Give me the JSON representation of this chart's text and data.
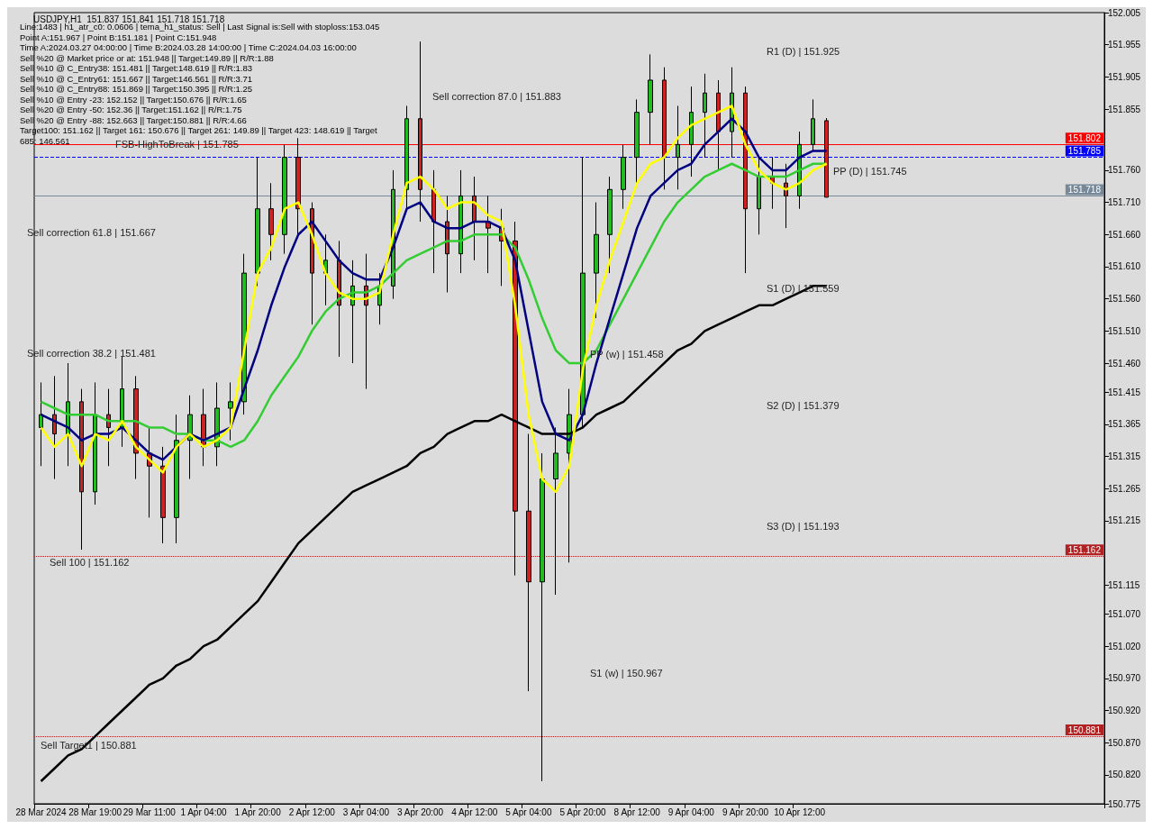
{
  "chart_data": {
    "type": "candlestick",
    "title": "USDJPY,H1  151.837 151.841 151.718 151.718",
    "categories": [
      "28 Mar 2024",
      null,
      null,
      null,
      "28 Mar 19:00",
      null,
      null,
      null,
      "29 Mar 11:00",
      null,
      null,
      null,
      "1 Apr 04:00",
      null,
      null,
      null,
      "1 Apr 20:00",
      null,
      null,
      null,
      "2 Apr 12:00",
      null,
      null,
      null,
      "3 Apr 04:00",
      null,
      null,
      null,
      "3 Apr 20:00",
      null,
      null,
      null,
      "4 Apr 12:00",
      null,
      null,
      null,
      "5 Apr 04:00",
      null,
      null,
      null,
      "5 Apr 20:00",
      null,
      null,
      null,
      "8 Apr 12:00",
      null,
      null,
      null,
      "9 Apr 04:00",
      null,
      null,
      null,
      "9 Apr 20:00",
      null,
      null,
      null,
      "10 Apr 12:00",
      null,
      null,
      null,
      null,
      null,
      null,
      null,
      null,
      null,
      null,
      null,
      null,
      null,
      null,
      null,
      null,
      null,
      null,
      null,
      null,
      null,
      null
    ],
    "ohlc": [
      [
        151.36,
        151.43,
        151.3,
        151.38
      ],
      [
        151.38,
        151.44,
        151.28,
        151.35
      ],
      [
        151.35,
        151.46,
        151.3,
        151.4
      ],
      [
        151.4,
        151.42,
        151.17,
        151.26
      ],
      [
        151.26,
        151.43,
        151.24,
        151.38
      ],
      [
        151.38,
        151.42,
        151.3,
        151.36
      ],
      [
        151.36,
        151.47,
        151.33,
        151.42
      ],
      [
        151.42,
        151.44,
        151.28,
        151.32
      ],
      [
        151.32,
        151.36,
        151.22,
        151.3
      ],
      [
        151.3,
        151.33,
        151.18,
        151.22
      ],
      [
        151.22,
        151.38,
        151.18,
        151.34
      ],
      [
        151.34,
        151.41,
        151.28,
        151.38
      ],
      [
        151.38,
        151.42,
        151.3,
        151.33
      ],
      [
        151.33,
        151.43,
        151.3,
        151.39
      ],
      [
        151.39,
        151.43,
        151.34,
        151.4
      ],
      [
        151.4,
        151.63,
        151.38,
        151.6
      ],
      [
        151.6,
        151.78,
        151.58,
        151.7
      ],
      [
        151.7,
        151.74,
        151.62,
        151.66
      ],
      [
        151.66,
        151.8,
        151.63,
        151.78
      ],
      [
        151.78,
        151.81,
        151.66,
        151.7
      ],
      [
        151.7,
        151.71,
        151.52,
        151.6
      ],
      [
        151.6,
        151.66,
        151.55,
        151.62
      ],
      [
        151.62,
        151.65,
        151.47,
        151.55
      ],
      [
        151.55,
        151.62,
        151.46,
        151.58
      ],
      [
        151.58,
        151.63,
        151.42,
        151.55
      ],
      [
        151.55,
        151.6,
        151.52,
        151.58
      ],
      [
        151.58,
        151.76,
        151.56,
        151.73
      ],
      [
        151.73,
        151.86,
        151.7,
        151.84
      ],
      [
        151.84,
        151.96,
        151.68,
        151.73
      ],
      [
        151.73,
        151.76,
        151.6,
        151.68
      ],
      [
        151.68,
        151.72,
        151.57,
        151.63
      ],
      [
        151.63,
        151.76,
        151.6,
        151.72
      ],
      [
        151.72,
        151.75,
        151.62,
        151.68
      ],
      [
        151.68,
        151.72,
        151.6,
        151.67
      ],
      [
        151.67,
        151.7,
        151.58,
        151.65
      ],
      [
        151.65,
        151.68,
        151.13,
        151.23
      ],
      [
        151.23,
        151.35,
        150.95,
        151.12
      ],
      [
        151.12,
        151.32,
        150.81,
        151.28
      ],
      [
        151.28,
        151.36,
        151.1,
        151.32
      ],
      [
        151.32,
        151.42,
        151.15,
        151.38
      ],
      [
        151.38,
        151.78,
        151.36,
        151.6
      ],
      [
        151.6,
        151.71,
        151.53,
        151.66
      ],
      [
        151.66,
        151.75,
        151.6,
        151.73
      ],
      [
        151.73,
        151.8,
        151.7,
        151.78
      ],
      [
        151.78,
        151.87,
        151.74,
        151.85
      ],
      [
        151.85,
        151.94,
        151.8,
        151.9
      ],
      [
        151.9,
        151.92,
        151.73,
        151.78
      ],
      [
        151.78,
        151.86,
        151.73,
        151.8
      ],
      [
        151.8,
        151.89,
        151.75,
        151.85
      ],
      [
        151.85,
        151.91,
        151.78,
        151.88
      ],
      [
        151.88,
        151.9,
        151.76,
        151.82
      ],
      [
        151.82,
        151.92,
        151.78,
        151.88
      ],
      [
        151.88,
        151.89,
        151.6,
        151.7
      ],
      [
        151.7,
        151.78,
        151.66,
        151.75
      ],
      [
        151.75,
        151.78,
        151.7,
        151.74
      ],
      [
        151.74,
        151.77,
        151.67,
        151.72
      ],
      [
        151.72,
        151.82,
        151.7,
        151.8
      ],
      [
        151.8,
        151.87,
        151.79,
        151.84
      ],
      [
        151.837,
        151.841,
        151.718,
        151.718
      ],
      null,
      null,
      null,
      null,
      null,
      null,
      null,
      null,
      null,
      null,
      null,
      null,
      null,
      null,
      null,
      null,
      null,
      null,
      null,
      null
    ],
    "series": [
      {
        "type": "line",
        "color": "#000000",
        "values": [
          150.81,
          150.83,
          150.85,
          150.86,
          150.88,
          150.9,
          150.92,
          150.94,
          150.96,
          150.97,
          150.99,
          151.0,
          151.02,
          151.03,
          151.05,
          151.07,
          151.09,
          151.12,
          151.15,
          151.18,
          151.2,
          151.22,
          151.24,
          151.26,
          151.27,
          151.28,
          151.29,
          151.3,
          151.32,
          151.33,
          151.35,
          151.36,
          151.37,
          151.37,
          151.38,
          151.37,
          151.36,
          151.35,
          151.35,
          151.35,
          151.36,
          151.38,
          151.39,
          151.4,
          151.42,
          151.44,
          151.46,
          151.48,
          151.49,
          151.51,
          151.52,
          151.53,
          151.54,
          151.55,
          151.55,
          151.56,
          151.57,
          151.58,
          151.58,
          null,
          null,
          null,
          null,
          null,
          null,
          null,
          null,
          null,
          null,
          null,
          null,
          null,
          null,
          null,
          null,
          null,
          null,
          null,
          null
        ]
      },
      {
        "type": "line",
        "color": "#33cc33",
        "values": [
          151.4,
          151.39,
          151.38,
          151.38,
          151.38,
          151.37,
          151.37,
          151.37,
          151.36,
          151.36,
          151.35,
          151.35,
          151.34,
          151.34,
          151.33,
          151.34,
          151.37,
          151.41,
          151.44,
          151.47,
          151.51,
          151.54,
          151.56,
          151.57,
          151.57,
          151.58,
          151.6,
          151.62,
          151.63,
          151.64,
          151.65,
          151.65,
          151.66,
          151.66,
          151.66,
          151.64,
          151.59,
          151.53,
          151.48,
          151.46,
          151.46,
          151.48,
          151.52,
          151.56,
          151.6,
          151.64,
          151.68,
          151.71,
          151.73,
          151.75,
          151.76,
          151.77,
          151.76,
          151.75,
          151.75,
          151.75,
          151.76,
          151.77,
          151.77,
          null,
          null,
          null,
          null,
          null,
          null,
          null,
          null,
          null,
          null,
          null,
          null,
          null,
          null,
          null,
          null,
          null,
          null,
          null,
          null
        ]
      },
      {
        "type": "line",
        "color": "#000080",
        "values": [
          151.38,
          151.37,
          151.36,
          151.34,
          151.35,
          151.35,
          151.36,
          151.34,
          151.32,
          151.31,
          151.33,
          151.35,
          151.34,
          151.35,
          151.36,
          151.42,
          151.48,
          151.55,
          151.61,
          151.66,
          151.68,
          151.65,
          151.62,
          151.6,
          151.59,
          151.59,
          151.64,
          151.7,
          151.71,
          151.68,
          151.67,
          151.67,
          151.68,
          151.68,
          151.67,
          151.62,
          151.51,
          151.4,
          151.35,
          151.34,
          151.38,
          151.46,
          151.53,
          151.6,
          151.67,
          151.72,
          151.74,
          151.76,
          151.77,
          151.8,
          151.82,
          151.84,
          151.82,
          151.78,
          151.76,
          151.76,
          151.78,
          151.79,
          151.79,
          null,
          null,
          null,
          null,
          null,
          null,
          null,
          null,
          null,
          null,
          null,
          null,
          null,
          null,
          null,
          null,
          null,
          null,
          null,
          null
        ]
      },
      {
        "type": "line",
        "color": "#ffff00",
        "values": [
          151.36,
          151.33,
          151.35,
          151.3,
          151.35,
          151.34,
          151.37,
          151.33,
          151.31,
          151.29,
          151.33,
          151.35,
          151.33,
          151.34,
          151.36,
          151.48,
          151.6,
          151.64,
          151.7,
          151.71,
          151.66,
          151.6,
          151.57,
          151.56,
          151.56,
          151.57,
          151.66,
          151.74,
          151.75,
          151.73,
          151.7,
          151.71,
          151.71,
          151.69,
          151.68,
          151.55,
          151.38,
          151.28,
          151.26,
          151.3,
          151.45,
          151.55,
          151.62,
          151.68,
          151.74,
          151.77,
          151.78,
          151.81,
          151.83,
          151.84,
          151.85,
          151.86,
          151.8,
          151.76,
          151.74,
          151.73,
          151.74,
          151.76,
          151.77,
          null,
          null,
          null,
          null,
          null,
          null,
          null,
          null,
          null,
          null,
          null,
          null,
          null,
          null,
          null,
          null,
          null,
          null,
          null,
          null
        ]
      }
    ],
    "ylim": [
      150.775,
      152.005
    ],
    "yticks": [
      152.005,
      151.955,
      151.905,
      151.855,
      {
        "value": 151.76,
        "label": "151.760"
      },
      {
        "value": 151.71,
        "label": "151.710"
      },
      {
        "value": 151.66,
        "label": "151.660"
      },
      {
        "value": 151.61,
        "label": "151.610"
      },
      {
        "value": 151.56,
        "label": "151.560"
      },
      {
        "value": 151.51,
        "label": "151.510"
      },
      {
        "value": 151.46,
        "label": "151.460"
      },
      151.415,
      151.365,
      151.315,
      151.265,
      151.215,
      151.115,
      {
        "value": 151.07,
        "label": "151.070"
      },
      {
        "value": 151.02,
        "label": "151.020"
      },
      {
        "value": 150.97,
        "label": "150.970"
      },
      {
        "value": 150.92,
        "label": "150.920"
      },
      {
        "value": 150.87,
        "label": "150.870"
      },
      {
        "value": 150.82,
        "label": "150.820"
      },
      150.775
    ],
    "ref_lines": [
      {
        "axis": "y",
        "value": 151.802,
        "label": "151.802",
        "color": "#ff0000",
        "line_style": "solid"
      },
      {
        "axis": "y",
        "value": 151.785,
        "label": "151.785",
        "color": "#0000ff",
        "line_style": "dashed"
      },
      {
        "axis": "y",
        "value": 151.718,
        "label": "151.718",
        "color": "#778899",
        "line_style": "solid"
      },
      {
        "axis": "y",
        "value": 151.162,
        "label": "151.162",
        "color": "#b22222",
        "line_style": "dotted"
      },
      {
        "axis": "y",
        "value": 150.881,
        "label": "150.881",
        "color": "#b22222",
        "line_style": "dotted"
      }
    ],
    "annotations": [
      "Line:1483 | h1_atr_c0: 0.0606 | tema_h1_status: Sell | Last Signal is:Sell with stoploss:153.045",
      "Point A:151.967 | Point B:151.181 | Point C:151.948",
      "Time A:2024.03.27 04:00:00 | Time B:2024.03.28 14:00:00 | Time C:2024.04.03 16:00:00",
      "Sell %20 @ Market price or at: 151.948 || Target:149.89 || R/R:1.88",
      "Sell %10 @ C_Entry38: 151.481 || Target:148.619 || R/R:1.83",
      "Sell %10 @ C_Entry61: 151.667 || Target:146.561 || R/R:3.71",
      "Sell %10 @ C_Entry88: 151.869 || Target:150.395 || R/R:1.25",
      "Sell %10 @ Entry -23: 152.152 || Target:150.676 || R/R:1.65",
      "Sell %20 @ Entry -50: 152.36 || Target:151.162 || R/R:1.75",
      "Sell %20 @ Entry -88: 152.663 || Target:150.881 || R/R:4.66",
      "Target100: 151.162 || Target 161: 150.676 || Target 261: 149.89 || Target 423: 148.619 || Target 685: 146.561",
      "FSB-HighToBreak | 151.785",
      "Sell correction 61.8 | 151.667",
      "Sell correction 38.2 | 151.481",
      "Sell correction 87.0 | 151.883",
      "Sell 100 | 151.162",
      "Sell Target1 | 150.881",
      "R1 (D) | 151.925",
      "PP (D) | 151.745",
      "S1 (D) | 151.559",
      "PP (w) | 151.458",
      "S2 (D) | 151.379",
      "S3 (D) | 151.193",
      "S1 (w) | 150.967"
    ]
  }
}
